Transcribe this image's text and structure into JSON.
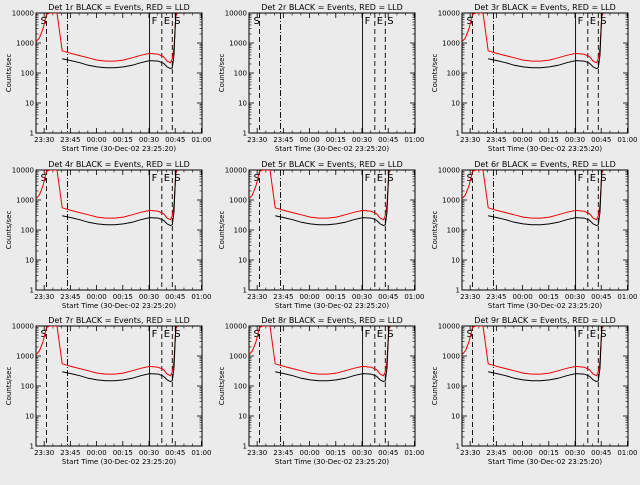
{
  "figure": {
    "background": "#ebebeb",
    "colors": {
      "events": "#000000",
      "lld": "#ee0000",
      "markers": "#000000"
    },
    "xlabel": "Start Time (30-Dec-02 23:25:20)",
    "ylabel": "Counts/sec",
    "xticks": [
      "23:30",
      "23:45",
      "00:00",
      "00:15",
      "00:30",
      "00:45",
      "01:00"
    ],
    "yticks": [
      "1",
      "10",
      "100",
      "1000",
      "10000"
    ]
  },
  "chart_data": [
    {
      "type": "line",
      "title": "Det 1r BLACK = Events, RED = LLD",
      "has_data": true,
      "marker_labels": [
        "S",
        "F",
        "E",
        "S"
      ],
      "yscale": "log",
      "ylim": [
        1,
        10000
      ]
    },
    {
      "type": "line",
      "title": "Det 2r BLACK = Events, RED = LLD",
      "has_data": false,
      "marker_labels": [
        "S",
        "F",
        "E",
        "S"
      ],
      "yscale": "log",
      "ylim": [
        1,
        10000
      ]
    },
    {
      "type": "line",
      "title": "Det 3r BLACK = Events, RED = LLD",
      "has_data": true,
      "marker_labels": [
        "S",
        "F",
        "E",
        "S"
      ],
      "yscale": "log",
      "ylim": [
        1,
        10000
      ]
    },
    {
      "type": "line",
      "title": "Det 4r BLACK = Events, RED = LLD",
      "has_data": true,
      "marker_labels": [
        "S",
        "F",
        "E",
        "S"
      ],
      "yscale": "log",
      "ylim": [
        1,
        10000
      ]
    },
    {
      "type": "line",
      "title": "Det 5r BLACK = Events, RED = LLD",
      "has_data": true,
      "marker_labels": [
        "S",
        "F",
        "E",
        "S"
      ],
      "yscale": "log",
      "ylim": [
        1,
        10000
      ]
    },
    {
      "type": "line",
      "title": "Det 6r BLACK = Events, RED = LLD",
      "has_data": true,
      "marker_labels": [
        "S",
        "F",
        "E",
        "S"
      ],
      "yscale": "log",
      "ylim": [
        1,
        10000
      ]
    },
    {
      "type": "line",
      "title": "Det 7r BLACK = Events, RED = LLD",
      "has_data": true,
      "marker_labels": [
        "S",
        "F",
        "E",
        "S"
      ],
      "yscale": "log",
      "ylim": [
        1,
        10000
      ]
    },
    {
      "type": "line",
      "title": "Det 8r BLACK = Events, RED = LLD",
      "has_data": true,
      "marker_labels": [
        "S",
        "F",
        "E",
        "S"
      ],
      "yscale": "log",
      "ylim": [
        1,
        10000
      ]
    },
    {
      "type": "line",
      "title": "Det 9r BLACK = Events, RED = LLD",
      "has_data": true,
      "marker_labels": [
        "S",
        "F",
        "E",
        "S"
      ],
      "yscale": "log",
      "ylim": [
        1,
        10000
      ]
    }
  ],
  "series": {
    "time_min_offset": [
      0,
      2,
      4,
      6,
      8,
      9,
      10,
      12,
      15,
      20,
      25,
      30,
      35,
      40,
      45,
      50,
      55,
      60,
      65,
      70,
      73,
      75,
      77,
      78,
      79,
      80,
      81
    ],
    "lld": [
      1100,
      1500,
      3000,
      9000,
      10000,
      10000,
      10000,
      10000,
      550,
      450,
      380,
      320,
      270,
      250,
      250,
      270,
      320,
      390,
      450,
      420,
      350,
      250,
      220,
      300,
      700,
      8000,
      10000
    ],
    "events": [
      null,
      null,
      null,
      null,
      null,
      null,
      null,
      null,
      300,
      260,
      220,
      180,
      160,
      150,
      150,
      160,
      180,
      220,
      260,
      250,
      210,
      160,
      140,
      150,
      400,
      10000,
      10000
    ]
  },
  "markers": [
    {
      "label": "S",
      "time_min_offset": 6,
      "style": "dashed"
    },
    {
      "label": "",
      "time_min_offset": 18,
      "style": "dashdot"
    },
    {
      "label": "F",
      "time_min_offset": 65,
      "style": "solid"
    },
    {
      "label": "E",
      "time_min_offset": 72,
      "style": "dashed"
    },
    {
      "label": "S",
      "time_min_offset": 78,
      "style": "dashed"
    }
  ]
}
